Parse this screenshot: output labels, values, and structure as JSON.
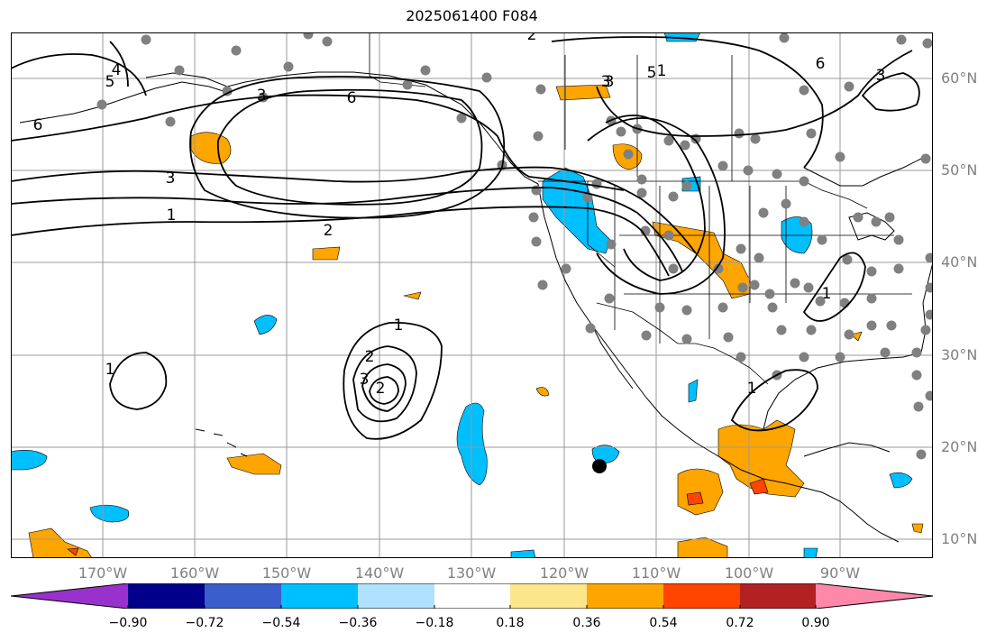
{
  "title": "2025061400 F084",
  "map": {
    "lat_labels": [
      "60°N",
      "50°N",
      "40°N",
      "30°N",
      "20°N",
      "10°N"
    ],
    "lon_labels": [
      "170°W",
      "160°W",
      "150°W",
      "140°W",
      "130°W",
      "120°W",
      "110°W",
      "100°W",
      "90°W"
    ],
    "contour_labels": [
      "6",
      "5",
      "4",
      "3",
      "2",
      "1",
      "6",
      "3",
      "1",
      "2",
      "3",
      "2",
      "1",
      "2",
      "3",
      "1",
      "5",
      "3",
      "6",
      "3",
      "1",
      "1"
    ],
    "colors": {
      "land_outline": "#000000",
      "gridline": "#9a9a9a",
      "station_dot": "#808080",
      "contour": "#000000"
    }
  },
  "colorbar": {
    "tick_labels": [
      "−0.90",
      "−0.72",
      "−0.54",
      "−0.36",
      "−0.18",
      "0.18",
      "0.36",
      "0.54",
      "0.72",
      "0.90"
    ],
    "colors": [
      "#9932cc",
      "#00008b",
      "#3a5fcd",
      "#00bfff",
      "#b0e2ff",
      "#ffffff",
      "#fce68c",
      "#ffa500",
      "#ff4500",
      "#b22222",
      "#ff88aa"
    ]
  }
}
